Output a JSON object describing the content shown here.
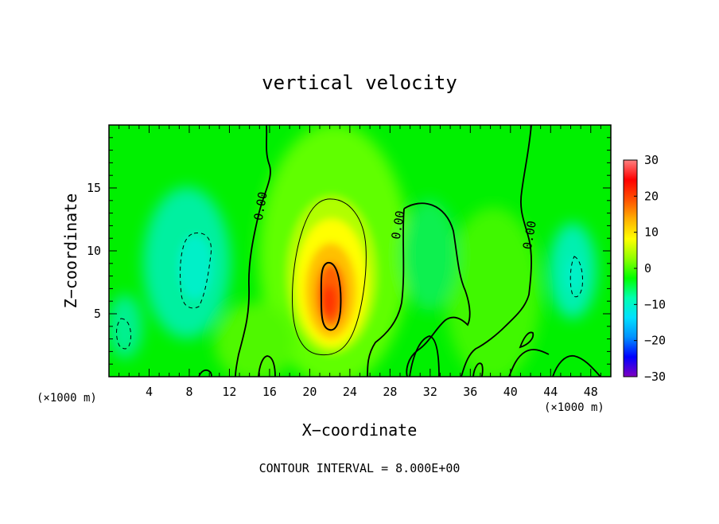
{
  "chart_data": {
    "type": "heatmap",
    "title": "vertical velocity",
    "xlabel": "X−coordinate",
    "ylabel": "Z−coordinate",
    "x_unit_left": "(×1000 m)",
    "x_unit_right": "(×1000 m)",
    "xlim": [
      0,
      50
    ],
    "ylim": [
      0,
      20
    ],
    "x_ticks": [
      4,
      8,
      12,
      16,
      20,
      24,
      28,
      32,
      36,
      40,
      44,
      48
    ],
    "x_tick_labels": [
      "4",
      "8",
      "12",
      "16",
      "20",
      "24",
      "28",
      "32",
      "36",
      "40",
      "44",
      "48"
    ],
    "y_ticks": [
      5,
      10,
      15
    ],
    "y_tick_labels": [
      "5",
      "10",
      "15"
    ],
    "note": "CONTOUR INTERVAL = 8.000E+00",
    "colorbar": {
      "min": -30,
      "max": 30,
      "ticks": [
        30,
        20,
        10,
        0,
        -10,
        -20,
        -30
      ],
      "tick_labels": [
        "30",
        "20",
        "10",
        "0",
        "−10",
        "−20",
        "−30"
      ],
      "colors": [
        "#7f00c0",
        "#0000ff",
        "#0090ff",
        "#00e0ff",
        "#00ffb0",
        "#00ff00",
        "#90ff00",
        "#ffff00",
        "#ffb000",
        "#ff5000",
        "#ff0000",
        "#ff8080"
      ]
    },
    "contour_labels": [
      {
        "text": "0.00",
        "x": 15.5,
        "z": 13.5
      },
      {
        "text": "0.00",
        "x": 29.2,
        "z": 12.0
      },
      {
        "text": "0.00",
        "x": 42.3,
        "z": 11.2
      }
    ],
    "features": [
      {
        "kind": "updraft_max",
        "x": 21.8,
        "z": 7.0,
        "peak": 22
      },
      {
        "kind": "downdraft",
        "x": 8.5,
        "z": 9.0,
        "peak": -8
      },
      {
        "kind": "downdraft",
        "x": 1.2,
        "z": 3.5,
        "peak": -6
      },
      {
        "kind": "downdraft",
        "x": 46.2,
        "z": 8.0,
        "peak": -7
      }
    ]
  }
}
